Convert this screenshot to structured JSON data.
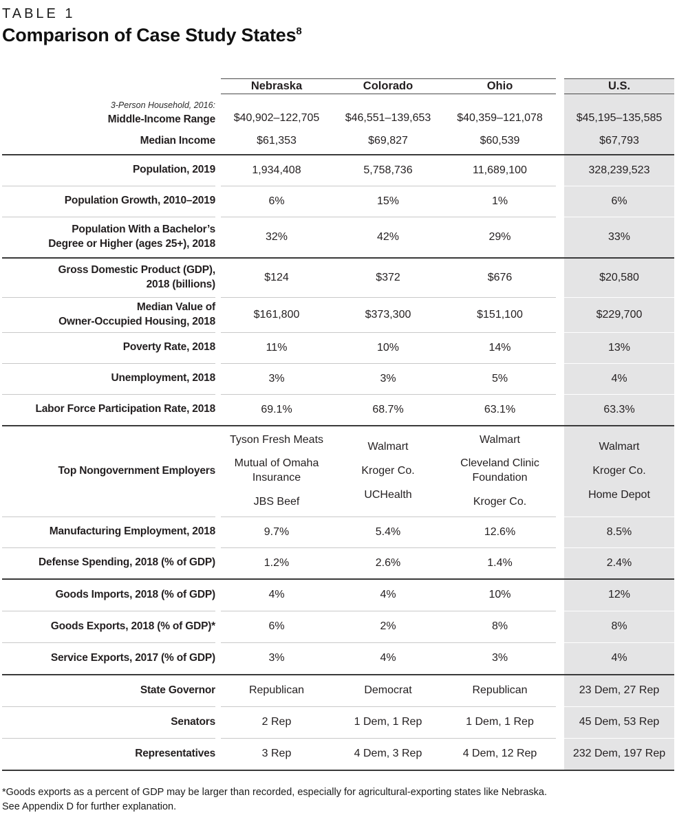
{
  "page": {
    "eyebrow": "TABLE 1",
    "title": "Comparison of Case Study States",
    "title_superscript": "8"
  },
  "table": {
    "columns": [
      "Nebraska",
      "Colorado",
      "Ohio",
      "U.S."
    ],
    "household_note": "3-Person Household, 2016:",
    "rows": {
      "middle_income": {
        "label": "Middle-Income Range",
        "values": [
          "$40,902–122,705",
          "$46,551–139,653",
          "$40,359–121,078",
          "$45,195–135,585"
        ]
      },
      "median_income": {
        "label": "Median Income",
        "values": [
          "$61,353",
          "$69,827",
          "$60,539",
          "$67,793"
        ]
      },
      "population": {
        "label": "Population, 2019",
        "values": [
          "1,934,408",
          "5,758,736",
          "11,689,100",
          "328,239,523"
        ]
      },
      "population_growth": {
        "label": "Population Growth, 2010–2019",
        "values": [
          "6%",
          "15%",
          "1%",
          "6%"
        ]
      },
      "bachelors": {
        "label_line1": "Population With a Bachelor’s",
        "label_line2": "Degree or Higher (ages 25+), 2018",
        "values": [
          "32%",
          "42%",
          "29%",
          "33%"
        ]
      },
      "gdp": {
        "label_line1": "Gross Domestic Product (GDP),",
        "label_line2": "2018 (billions)",
        "values": [
          "$124",
          "$372",
          "$676",
          "$20,580"
        ]
      },
      "housing": {
        "label_line1": "Median Value of",
        "label_line2": "Owner-Occupied Housing, 2018",
        "values": [
          "$161,800",
          "$373,300",
          "$151,100",
          "$229,700"
        ]
      },
      "poverty": {
        "label": "Poverty Rate, 2018",
        "values": [
          "11%",
          "10%",
          "14%",
          "13%"
        ]
      },
      "unemployment": {
        "label": "Unemployment, 2018",
        "values": [
          "3%",
          "3%",
          "5%",
          "4%"
        ]
      },
      "labor_force": {
        "label": "Labor Force Participation Rate, 2018",
        "values": [
          "69.1%",
          "68.7%",
          "63.1%",
          "63.3%"
        ]
      },
      "employers": {
        "label": "Top Nongovernment Employers",
        "values": [
          [
            "Tyson Fresh Meats",
            "Mutual of Omaha Insurance",
            "JBS Beef"
          ],
          [
            "Walmart",
            "Kroger Co.",
            "UCHealth"
          ],
          [
            "Walmart",
            "Cleveland Clinic Foundation",
            "Kroger Co."
          ],
          [
            "Walmart",
            "Kroger Co.",
            "Home Depot"
          ]
        ]
      },
      "manufacturing": {
        "label": "Manufacturing Employment, 2018",
        "values": [
          "9.7%",
          "5.4%",
          "12.6%",
          "8.5%"
        ]
      },
      "defense": {
        "label": "Defense Spending, 2018 (% of GDP)",
        "values": [
          "1.2%",
          "2.6%",
          "1.4%",
          "2.4%"
        ]
      },
      "goods_imports": {
        "label": "Goods Imports, 2018 (% of GDP)",
        "values": [
          "4%",
          "4%",
          "10%",
          "12%"
        ]
      },
      "goods_exports": {
        "label": "Goods Exports, 2018 (% of GDP)*",
        "values": [
          "6%",
          "2%",
          "8%",
          "8%"
        ]
      },
      "service_exports": {
        "label": "Service Exports, 2017 (% of GDP)",
        "values": [
          "3%",
          "4%",
          "3%",
          "4%"
        ]
      },
      "governor": {
        "label": "State Governor",
        "values": [
          "Republican",
          "Democrat",
          "Republican",
          "23 Dem, 27 Rep"
        ]
      },
      "senators": {
        "label": "Senators",
        "values": [
          "2 Rep",
          "1 Dem, 1 Rep",
          "1 Dem, 1 Rep",
          "45 Dem, 53 Rep"
        ]
      },
      "representatives": {
        "label": "Representatives",
        "values": [
          "3 Rep",
          "4 Dem, 3 Rep",
          "4 Dem, 12 Rep",
          "232 Dem, 197 Rep"
        ]
      }
    }
  },
  "footnote": {
    "line1": "*Goods exports as a percent of GDP may be larger than recorded, especially for agricultural-exporting states like Nebraska.",
    "line2": "See Appendix D for further explanation."
  },
  "colors": {
    "us_column_bg": "#e4e4e5",
    "section_rule": "#393939",
    "row_rule": "#c8c8c8",
    "header_rule": "#4a4a4a",
    "text": "#231f20"
  }
}
